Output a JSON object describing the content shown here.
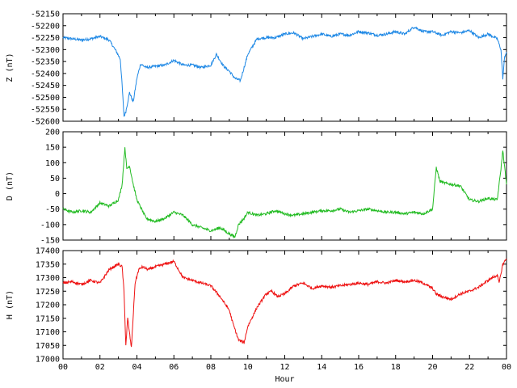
{
  "chart_data": [
    {
      "type": "line",
      "ylabel": "Z (nT)",
      "ylim": [
        -52600,
        -52150
      ],
      "yticks": [
        -52600,
        -52550,
        -52500,
        -52450,
        -52400,
        -52350,
        -52300,
        -52250,
        -52200,
        -52150
      ],
      "color": "#1e88e5",
      "series": [
        {
          "x": [
            0,
            0.5,
            1,
            1.5,
            2,
            2.5,
            2.9,
            3.1,
            3.2,
            3.3,
            3.4,
            3.6,
            3.8,
            4.0,
            4.2,
            4.5,
            5,
            5.5,
            6,
            6.5,
            7,
            7.5,
            8,
            8.3,
            8.7,
            9,
            9.3,
            9.6,
            10,
            10.5,
            11,
            11.5,
            12,
            12.5,
            13,
            13.5,
            14,
            14.5,
            15,
            15.5,
            16,
            16.5,
            17,
            17.5,
            18,
            18.5,
            19,
            19.5,
            20,
            20.5,
            21,
            21.5,
            22,
            22.5,
            23,
            23.5,
            23.7,
            23.8,
            23.9,
            24
          ],
          "y": [
            -52250,
            -52255,
            -52260,
            -52255,
            -52245,
            -52260,
            -52310,
            -52340,
            -52450,
            -52580,
            -52560,
            -52480,
            -52520,
            -52420,
            -52360,
            -52375,
            -52370,
            -52365,
            -52345,
            -52365,
            -52365,
            -52375,
            -52365,
            -52320,
            -52370,
            -52390,
            -52420,
            -52430,
            -52320,
            -52255,
            -52250,
            -52250,
            -52235,
            -52230,
            -52255,
            -52245,
            -52235,
            -52245,
            -52235,
            -52240,
            -52225,
            -52230,
            -52240,
            -52235,
            -52225,
            -52235,
            -52205,
            -52225,
            -52225,
            -52240,
            -52225,
            -52230,
            -52220,
            -52250,
            -52235,
            -52255,
            -52300,
            -52420,
            -52330,
            -52310
          ]
        }
      ]
    },
    {
      "type": "line",
      "ylabel": "D (nT)",
      "ylim": [
        -150,
        200
      ],
      "yticks": [
        -150,
        -100,
        -50,
        0,
        50,
        100,
        150,
        200
      ],
      "color": "#22bb22",
      "series": [
        {
          "x": [
            0,
            0.5,
            1,
            1.5,
            2,
            2.5,
            3,
            3.2,
            3.35,
            3.45,
            3.6,
            3.8,
            4,
            4.5,
            5,
            5.5,
            6,
            6.5,
            7,
            7.5,
            8,
            8.5,
            9,
            9.3,
            9.5,
            9.8,
            10,
            10.5,
            11,
            11.5,
            12,
            12.5,
            13,
            13.5,
            14,
            14.5,
            15,
            15.5,
            16,
            16.5,
            17,
            17.5,
            18,
            18.5,
            19,
            19.5,
            20,
            20.2,
            20.4,
            20.6,
            21,
            21.5,
            22,
            22.5,
            23,
            23.5,
            23.7,
            23.8,
            24
          ],
          "y": [
            -50,
            -60,
            -55,
            -60,
            -30,
            -40,
            -20,
            30,
            150,
            80,
            90,
            30,
            -20,
            -80,
            -90,
            -80,
            -60,
            -70,
            -100,
            -110,
            -120,
            -110,
            -130,
            -140,
            -100,
            -80,
            -60,
            -70,
            -65,
            -55,
            -65,
            -70,
            -65,
            -60,
            -55,
            -55,
            -50,
            -60,
            -55,
            -50,
            -55,
            -60,
            -60,
            -65,
            -60,
            -65,
            -50,
            85,
            40,
            35,
            30,
            25,
            -20,
            -25,
            -15,
            -20,
            80,
            140,
            30
          ]
        }
      ]
    },
    {
      "type": "line",
      "ylabel": "H (nT)",
      "ylim": [
        17000,
        17400
      ],
      "yticks": [
        17000,
        17050,
        17100,
        17150,
        17200,
        17250,
        17300,
        17350,
        17400
      ],
      "color": "#ee1111",
      "series": [
        {
          "x": [
            0,
            0.5,
            1,
            1.5,
            2,
            2.5,
            3,
            3.2,
            3.3,
            3.4,
            3.5,
            3.7,
            3.9,
            4.1,
            4.3,
            4.6,
            5,
            5.5,
            6,
            6.5,
            7,
            7.5,
            8,
            8.5,
            9,
            9.2,
            9.5,
            9.8,
            10,
            10.5,
            11,
            11.3,
            11.6,
            12,
            12.5,
            13,
            13.5,
            14,
            14.5,
            15,
            15.5,
            16,
            16.5,
            17,
            17.5,
            18,
            18.5,
            19,
            19.5,
            20,
            20.2,
            20.5,
            21,
            21.5,
            22,
            22.5,
            23,
            23.5,
            23.6,
            23.8,
            24
          ],
          "y": [
            17280,
            17285,
            17275,
            17290,
            17280,
            17330,
            17350,
            17340,
            17250,
            17050,
            17150,
            17040,
            17280,
            17330,
            17340,
            17330,
            17340,
            17350,
            17360,
            17300,
            17290,
            17280,
            17270,
            17230,
            17180,
            17130,
            17070,
            17060,
            17120,
            17190,
            17240,
            17250,
            17230,
            17240,
            17270,
            17280,
            17260,
            17270,
            17265,
            17270,
            17275,
            17280,
            17275,
            17285,
            17280,
            17290,
            17285,
            17290,
            17280,
            17260,
            17240,
            17230,
            17220,
            17240,
            17250,
            17265,
            17290,
            17310,
            17280,
            17350,
            17370
          ]
        }
      ]
    }
  ],
  "xaxis": {
    "xlabel": "Hour",
    "xlim": [
      0,
      24
    ],
    "ticklabels": [
      "00",
      "02",
      "04",
      "06",
      "08",
      "10",
      "12",
      "14",
      "16",
      "18",
      "20",
      "22",
      "00"
    ]
  }
}
